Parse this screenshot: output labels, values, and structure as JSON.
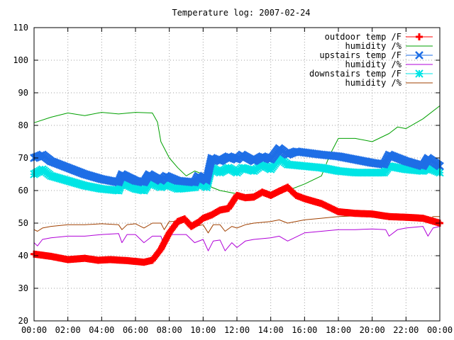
{
  "chart_data": {
    "type": "line",
    "title": "Temperature log: 2007-02-24",
    "ylim": [
      20,
      110
    ],
    "xlim": [
      0,
      24
    ],
    "grid": true,
    "legend_position": "top-right",
    "x_ticks": [
      "00:00",
      "02:00",
      "04:00",
      "06:00",
      "08:00",
      "10:00",
      "12:00",
      "14:00",
      "16:00",
      "18:00",
      "20:00",
      "22:00",
      "00:00"
    ],
    "y_ticks": [
      "20",
      "30",
      "40",
      "50",
      "60",
      "70",
      "80",
      "90",
      "100",
      "110"
    ],
    "series": [
      {
        "name": "outdoor temp /F",
        "color": "#ff0000",
        "marker": "plus",
        "points": [
          [
            0,
            40.5
          ],
          [
            1,
            39.8
          ],
          [
            2,
            38.8
          ],
          [
            3,
            39.2
          ],
          [
            3.8,
            38.6
          ],
          [
            4.5,
            38.8
          ],
          [
            5.5,
            38.5
          ],
          [
            6.5,
            38
          ],
          [
            7,
            38.6
          ],
          [
            7.5,
            42
          ],
          [
            8,
            47
          ],
          [
            8.5,
            50.5
          ],
          [
            8.9,
            51.3
          ],
          [
            9.3,
            49
          ],
          [
            9.7,
            50.2
          ],
          [
            10,
            51.5
          ],
          [
            10.5,
            52.5
          ],
          [
            11,
            54
          ],
          [
            11.5,
            54.5
          ],
          [
            12,
            58.5
          ],
          [
            12.5,
            57.8
          ],
          [
            13,
            58
          ],
          [
            13.5,
            59.5
          ],
          [
            14,
            58.5
          ],
          [
            14.5,
            59.8
          ],
          [
            15,
            61
          ],
          [
            15.5,
            58.5
          ],
          [
            16,
            57.5
          ],
          [
            17,
            56
          ],
          [
            18,
            53.5
          ],
          [
            19,
            53
          ],
          [
            20,
            52.8
          ],
          [
            21,
            52
          ],
          [
            22,
            51.8
          ],
          [
            23,
            51.5
          ],
          [
            24,
            50
          ]
        ]
      },
      {
        "name": "humidity /%",
        "color": "#00a000",
        "marker": "none",
        "points": [
          [
            0,
            80.8
          ],
          [
            1,
            82.5
          ],
          [
            2,
            83.8
          ],
          [
            3,
            83
          ],
          [
            4,
            84
          ],
          [
            5,
            83.5
          ],
          [
            6,
            84
          ],
          [
            7,
            83.8
          ],
          [
            7.3,
            81
          ],
          [
            7.5,
            75
          ],
          [
            8,
            70
          ],
          [
            8.5,
            67
          ],
          [
            9,
            64.5
          ],
          [
            9.5,
            66
          ],
          [
            10,
            65
          ],
          [
            10.5,
            61
          ],
          [
            11,
            60
          ],
          [
            11.5,
            59.5
          ],
          [
            12,
            59
          ],
          [
            12.5,
            58.7
          ],
          [
            13,
            59
          ],
          [
            14,
            59.5
          ],
          [
            15,
            60
          ],
          [
            16,
            62
          ],
          [
            17,
            64.5
          ],
          [
            17.5,
            71
          ],
          [
            18,
            76
          ],
          [
            19,
            76
          ],
          [
            20,
            75
          ],
          [
            21,
            77.5
          ],
          [
            21.5,
            79.5
          ],
          [
            22,
            79
          ],
          [
            23,
            82
          ],
          [
            24,
            86
          ]
        ]
      },
      {
        "name": "upstairs temp /F",
        "color": "#1e6ee6",
        "marker": "x",
        "points": [
          [
            0,
            70
          ],
          [
            0.5,
            71
          ],
          [
            1,
            69
          ],
          [
            2,
            67
          ],
          [
            3,
            65
          ],
          [
            4,
            63.5
          ],
          [
            5,
            62.5
          ],
          [
            5.2,
            65
          ],
          [
            6,
            63
          ],
          [
            6.5,
            62.5
          ],
          [
            6.8,
            65
          ],
          [
            7.5,
            63
          ],
          [
            7.8,
            64.5
          ],
          [
            8.5,
            63
          ],
          [
            9.5,
            62.5
          ],
          [
            9.7,
            64.5
          ],
          [
            10.2,
            63
          ],
          [
            10.5,
            70
          ],
          [
            11,
            69
          ],
          [
            11.5,
            70.5
          ],
          [
            12,
            69.5
          ],
          [
            12.3,
            71
          ],
          [
            13,
            69
          ],
          [
            13.5,
            70.5
          ],
          [
            14,
            69.5
          ],
          [
            14.5,
            73
          ],
          [
            15,
            71
          ],
          [
            15.5,
            72
          ],
          [
            17,
            71
          ],
          [
            18,
            70.5
          ],
          [
            19,
            69.5
          ],
          [
            20,
            68.5
          ],
          [
            20.7,
            68
          ],
          [
            21,
            71
          ],
          [
            22,
            69
          ],
          [
            23,
            67.5
          ],
          [
            23.3,
            70
          ],
          [
            24,
            67.5
          ]
        ]
      },
      {
        "name": "humidity /%",
        "color": "#b000d8",
        "marker": "none",
        "points": [
          [
            0,
            44
          ],
          [
            0.2,
            43
          ],
          [
            0.5,
            45
          ],
          [
            1,
            45.5
          ],
          [
            2,
            46
          ],
          [
            3,
            46
          ],
          [
            4,
            46.5
          ],
          [
            5,
            46.8
          ],
          [
            5.2,
            44
          ],
          [
            5.5,
            46.5
          ],
          [
            6,
            46.5
          ],
          [
            6.5,
            44
          ],
          [
            7,
            46
          ],
          [
            7.5,
            46
          ],
          [
            7.7,
            43
          ],
          [
            8,
            46.5
          ],
          [
            9,
            46.5
          ],
          [
            9.5,
            44
          ],
          [
            10,
            45
          ],
          [
            10.3,
            41.5
          ],
          [
            10.6,
            44.5
          ],
          [
            11,
            44.8
          ],
          [
            11.3,
            41.5
          ],
          [
            11.7,
            44
          ],
          [
            12,
            42.5
          ],
          [
            12.5,
            44.5
          ],
          [
            13,
            45
          ],
          [
            14,
            45.5
          ],
          [
            14.5,
            46
          ],
          [
            15,
            44.5
          ],
          [
            16,
            47
          ],
          [
            17,
            47.5
          ],
          [
            18,
            48
          ],
          [
            19,
            48
          ],
          [
            20,
            48.2
          ],
          [
            20.8,
            48
          ],
          [
            21,
            46
          ],
          [
            21.5,
            48
          ],
          [
            22,
            48.5
          ],
          [
            23,
            49
          ],
          [
            23.3,
            46
          ],
          [
            23.6,
            48.5
          ],
          [
            24,
            49
          ]
        ]
      },
      {
        "name": "downstairs temp /F",
        "color": "#00e5e5",
        "marker": "star",
        "points": [
          [
            0,
            65
          ],
          [
            0.5,
            66.5
          ],
          [
            1,
            64.5
          ],
          [
            2,
            63
          ],
          [
            3,
            61.5
          ],
          [
            4,
            60.5
          ],
          [
            5,
            60
          ],
          [
            5.2,
            62.5
          ],
          [
            6,
            60.5
          ],
          [
            6.5,
            60
          ],
          [
            6.8,
            62.5
          ],
          [
            7.5,
            61
          ],
          [
            7.8,
            62
          ],
          [
            8.5,
            60.5
          ],
          [
            9.5,
            61
          ],
          [
            9.7,
            62.5
          ],
          [
            10.2,
            61
          ],
          [
            10.5,
            67
          ],
          [
            11,
            65.5
          ],
          [
            11.5,
            67
          ],
          [
            12,
            65.5
          ],
          [
            12.3,
            67
          ],
          [
            13,
            66
          ],
          [
            13.5,
            68
          ],
          [
            14,
            66.5
          ],
          [
            14.5,
            70
          ],
          [
            15,
            68
          ],
          [
            16,
            67.5
          ],
          [
            17,
            67
          ],
          [
            18,
            66
          ],
          [
            19,
            65.5
          ],
          [
            20,
            65.5
          ],
          [
            20.7,
            65.5
          ],
          [
            21,
            67.5
          ],
          [
            22,
            66.5
          ],
          [
            23,
            66
          ],
          [
            23.3,
            67
          ],
          [
            24,
            65.5
          ]
        ]
      },
      {
        "name": "humidity /%",
        "color": "#a04000",
        "marker": "none",
        "points": [
          [
            0,
            48
          ],
          [
            0.2,
            47.5
          ],
          [
            0.5,
            48.5
          ],
          [
            1,
            49
          ],
          [
            2,
            49.5
          ],
          [
            3,
            49.5
          ],
          [
            4,
            49.8
          ],
          [
            5,
            49.5
          ],
          [
            5.2,
            48
          ],
          [
            5.5,
            49.5
          ],
          [
            6,
            49.8
          ],
          [
            6.5,
            48.5
          ],
          [
            7,
            50
          ],
          [
            7.5,
            50
          ],
          [
            7.7,
            48
          ],
          [
            8,
            50.5
          ],
          [
            9,
            50.5
          ],
          [
            9.5,
            49
          ],
          [
            10,
            49.5
          ],
          [
            10.3,
            47
          ],
          [
            10.6,
            49.5
          ],
          [
            11,
            49.5
          ],
          [
            11.3,
            47.5
          ],
          [
            11.7,
            49
          ],
          [
            12,
            48.5
          ],
          [
            12.5,
            49.5
          ],
          [
            13,
            50
          ],
          [
            14,
            50.5
          ],
          [
            14.5,
            51
          ],
          [
            15,
            50
          ],
          [
            16,
            51
          ],
          [
            17,
            51.5
          ],
          [
            18,
            52
          ],
          [
            19,
            52.2
          ],
          [
            20,
            52
          ],
          [
            20.8,
            52
          ],
          [
            21,
            51
          ],
          [
            21.5,
            52
          ],
          [
            22,
            52
          ],
          [
            23,
            52
          ],
          [
            23.3,
            51
          ],
          [
            23.6,
            52
          ],
          [
            24,
            52
          ]
        ]
      }
    ]
  }
}
